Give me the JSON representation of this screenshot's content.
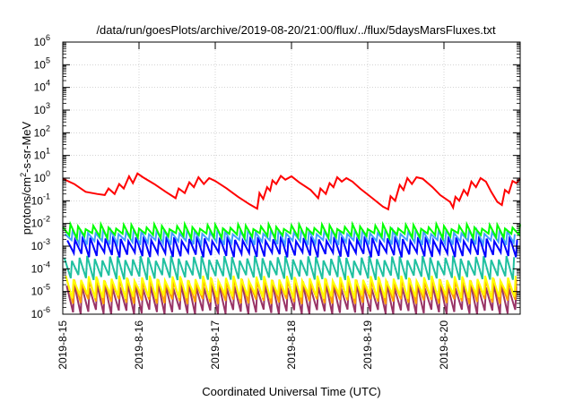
{
  "chart_data": {
    "type": "line",
    "title": "/data/run/goesPlots/archive/2019-08-20/21:00/flux/../flux/5daysMarsFluxes.txt",
    "xlabel": "Coordinated Universal Time (UTC)",
    "ylabel": {
      "main": "protons/cm",
      "sup": "2",
      "rest": "-s-sr-MeV"
    },
    "x_ticks": [
      "2019-8-15",
      "2019-8-16",
      "2019-8-17",
      "2019-8-18",
      "2019-8-19",
      "2019-8-20"
    ],
    "x_range_days": [
      0,
      6.0
    ],
    "y_scale": "log",
    "ylim": [
      1e-06,
      1000000.0
    ],
    "y_ticks": [
      {
        "base": "10",
        "exp": "6"
      },
      {
        "base": "10",
        "exp": "5"
      },
      {
        "base": "10",
        "exp": "4"
      },
      {
        "base": "10",
        "exp": "3"
      },
      {
        "base": "10",
        "exp": "2"
      },
      {
        "base": "10",
        "exp": "1"
      },
      {
        "base": "10",
        "exp": "0"
      },
      {
        "base": "10",
        "exp": "-1"
      },
      {
        "base": "10",
        "exp": "-2"
      },
      {
        "base": "10",
        "exp": "-3"
      },
      {
        "base": "10",
        "exp": "-4"
      },
      {
        "base": "10",
        "exp": "-5"
      },
      {
        "base": "10",
        "exp": "-6"
      }
    ],
    "grid": true,
    "series": [
      {
        "color": "#ff0000",
        "points": [
          [
            0,
            0.95
          ],
          [
            0.15,
            0.55
          ],
          [
            0.3,
            0.25
          ],
          [
            0.45,
            0.2
          ],
          [
            0.55,
            0.18
          ],
          [
            0.6,
            0.35
          ],
          [
            0.68,
            0.2
          ],
          [
            0.74,
            0.55
          ],
          [
            0.8,
            0.35
          ],
          [
            0.87,
            1.2
          ],
          [
            0.92,
            0.6
          ],
          [
            0.98,
            1.6
          ],
          [
            1.05,
            1.1
          ],
          [
            1.2,
            0.55
          ],
          [
            1.35,
            0.25
          ],
          [
            1.48,
            0.13
          ],
          [
            1.52,
            0.35
          ],
          [
            1.6,
            0.22
          ],
          [
            1.66,
            0.65
          ],
          [
            1.72,
            0.4
          ],
          [
            1.78,
            1.1
          ],
          [
            1.85,
            0.55
          ],
          [
            1.92,
            1.0
          ],
          [
            2.0,
            0.75
          ],
          [
            2.15,
            0.35
          ],
          [
            2.3,
            0.15
          ],
          [
            2.45,
            0.07
          ],
          [
            2.55,
            0.045
          ],
          [
            2.58,
            0.22
          ],
          [
            2.63,
            0.12
          ],
          [
            2.68,
            0.4
          ],
          [
            2.72,
            0.28
          ],
          [
            2.75,
            0.8
          ],
          [
            2.8,
            0.55
          ],
          [
            2.86,
            1.25
          ],
          [
            2.92,
            0.85
          ],
          [
            3.0,
            1.2
          ],
          [
            3.1,
            0.65
          ],
          [
            3.25,
            0.3
          ],
          [
            3.35,
            0.13
          ],
          [
            3.38,
            0.35
          ],
          [
            3.45,
            0.2
          ],
          [
            3.5,
            0.6
          ],
          [
            3.55,
            0.4
          ],
          [
            3.6,
            1.1
          ],
          [
            3.66,
            0.7
          ],
          [
            3.72,
            1.0
          ],
          [
            3.8,
            0.7
          ],
          [
            3.9,
            0.35
          ],
          [
            4.05,
            0.14
          ],
          [
            4.2,
            0.055
          ],
          [
            4.27,
            0.042
          ],
          [
            4.3,
            0.16
          ],
          [
            4.36,
            0.1
          ],
          [
            4.42,
            0.5
          ],
          [
            4.47,
            0.3
          ],
          [
            4.52,
            1.0
          ],
          [
            4.58,
            0.55
          ],
          [
            4.64,
            1.1
          ],
          [
            4.72,
            0.95
          ],
          [
            4.85,
            0.4
          ],
          [
            4.95,
            0.18
          ],
          [
            5.08,
            0.09
          ],
          [
            5.12,
            0.05
          ],
          [
            5.15,
            0.15
          ],
          [
            5.2,
            0.1
          ],
          [
            5.26,
            0.3
          ],
          [
            5.31,
            0.18
          ],
          [
            5.36,
            0.7
          ],
          [
            5.42,
            0.4
          ],
          [
            5.48,
            1.0
          ],
          [
            5.55,
            0.7
          ],
          [
            5.62,
            0.25
          ],
          [
            5.7,
            0.09
          ],
          [
            5.76,
            0.065
          ],
          [
            5.8,
            0.3
          ],
          [
            5.85,
            0.22
          ],
          [
            5.9,
            0.75
          ],
          [
            5.95,
            0.6
          ],
          [
            6.0,
            0.95
          ]
        ]
      }
    ],
    "oscillating_series": [
      {
        "color": "#00ff00",
        "peak": 0.0075,
        "trough": 0.0028,
        "period": 0.1,
        "phase": 0.0
      },
      {
        "color": "#44a0ff",
        "peak": 0.0045,
        "trough": 0.0014,
        "period": 0.1,
        "phase": 0.03
      },
      {
        "color": "#0000ff",
        "peak": 0.0022,
        "trough": 0.0004,
        "period": 0.1,
        "phase": 0.06
      },
      {
        "color": "#20c0a0",
        "peak": 0.0003,
        "trough": 4e-05,
        "period": 0.1,
        "phase": 0.02
      },
      {
        "color": "#ffff00",
        "peak": 4e-05,
        "trough": 6e-06,
        "period": 0.1,
        "phase": 0.04
      },
      {
        "color": "#ffa000",
        "peak": 3e-05,
        "trough": 3.5e-06,
        "period": 0.1,
        "phase": 0.05
      },
      {
        "color": "#993366",
        "peak": 1.8e-05,
        "trough": 1.2e-06,
        "period": 0.1,
        "phase": 0.05
      }
    ]
  }
}
